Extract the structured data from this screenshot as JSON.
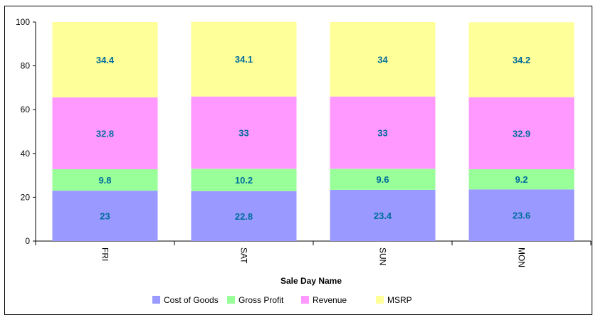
{
  "chart_data": {
    "type": "bar",
    "stacked": true,
    "categories": [
      "FRI",
      "SAT",
      "SUN",
      "MON"
    ],
    "series": [
      {
        "name": "Cost of Goods",
        "values": [
          23,
          22.8,
          23.4,
          23.6
        ],
        "color": "#9999ff"
      },
      {
        "name": "Gross Profit",
        "values": [
          9.8,
          10.2,
          9.6,
          9.2
        ],
        "color": "#99ff99"
      },
      {
        "name": "Revenue",
        "values": [
          32.8,
          33,
          33,
          32.9
        ],
        "color": "#ff99ff"
      },
      {
        "name": "MSRP",
        "values": [
          34.4,
          34.1,
          34,
          34.2
        ],
        "color": "#ffff99"
      }
    ],
    "xlabel": "Sale Day Name",
    "ylabel": "",
    "ylim": [
      0,
      100
    ],
    "yticks": [
      0,
      20,
      40,
      60,
      80,
      100
    ],
    "grid": false,
    "legend_position": "bottom",
    "label_color": "#006d9c",
    "data_labels": true
  }
}
